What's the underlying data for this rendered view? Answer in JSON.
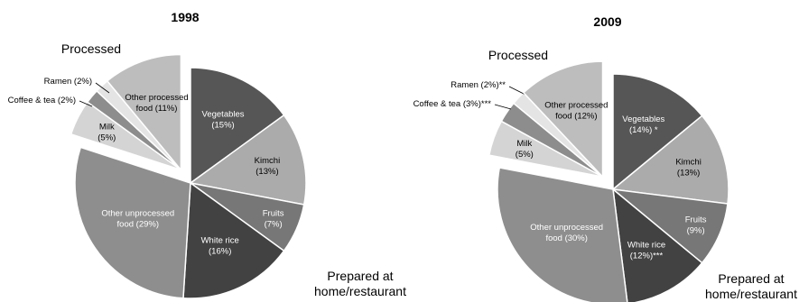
{
  "chart_data": [
    {
      "type": "pie",
      "title": "1998",
      "groups": [
        "Processed",
        "Prepared at home/restaurant"
      ],
      "slices": [
        {
          "label": "Vegetables (15%)",
          "value": 15,
          "group": "Prepared at home/restaurant",
          "color": "#565656"
        },
        {
          "label": "Kimchi (13%)",
          "value": 13,
          "group": "Prepared at home/restaurant",
          "color": "#ababab"
        },
        {
          "label": "Fruits (7%)",
          "value": 7,
          "group": "Prepared at home/restaurant",
          "color": "#777777"
        },
        {
          "label": "White rice (16%)",
          "value": 16,
          "group": "Prepared at home/restaurant",
          "color": "#424242"
        },
        {
          "label": "Other unprocessed food (29%)",
          "value": 29,
          "group": "Prepared at home/restaurant",
          "color": "#8e8e8e"
        },
        {
          "label": "Milk (5%)",
          "value": 5,
          "group": "Processed",
          "color": "#d4d4d4"
        },
        {
          "label": "Coffee & tea (2%)",
          "value": 2,
          "group": "Processed",
          "color": "#8d8d8d"
        },
        {
          "label": "Ramen (2%)",
          "value": 2,
          "group": "Processed",
          "color": "#e4e4e4"
        },
        {
          "label": "Other processed food (11%)",
          "value": 11,
          "group": "Processed",
          "color": "#bdbdbd"
        }
      ]
    },
    {
      "type": "pie",
      "title": "2009",
      "groups": [
        "Processed",
        "Prepared at home/restaurant"
      ],
      "slices": [
        {
          "label": "Vegetables (14%) *",
          "value": 14,
          "group": "Prepared at home/restaurant",
          "color": "#565656"
        },
        {
          "label": "Kimchi (13%)",
          "value": 13,
          "group": "Prepared at home/restaurant",
          "color": "#ababab"
        },
        {
          "label": "Fruits (9%)",
          "value": 9,
          "group": "Prepared at home/restaurant",
          "color": "#777777"
        },
        {
          "label": "White rice (12%)***",
          "value": 12,
          "group": "Prepared at home/restaurant",
          "color": "#424242"
        },
        {
          "label": "Other unprocessed food (30%)",
          "value": 30,
          "group": "Prepared at home/restaurant",
          "color": "#8e8e8e"
        },
        {
          "label": "Milk (5%)",
          "value": 5,
          "group": "Processed",
          "color": "#d4d4d4"
        },
        {
          "label": "Coffee & tea (3%)***",
          "value": 3,
          "group": "Processed",
          "color": "#8d8d8d"
        },
        {
          "label": "Ramen (2%)**",
          "value": 2,
          "group": "Processed",
          "color": "#e4e4e4"
        },
        {
          "label": "Other processed food (12%)",
          "value": 12,
          "group": "Processed",
          "color": "#bdbdbd"
        }
      ]
    }
  ]
}
